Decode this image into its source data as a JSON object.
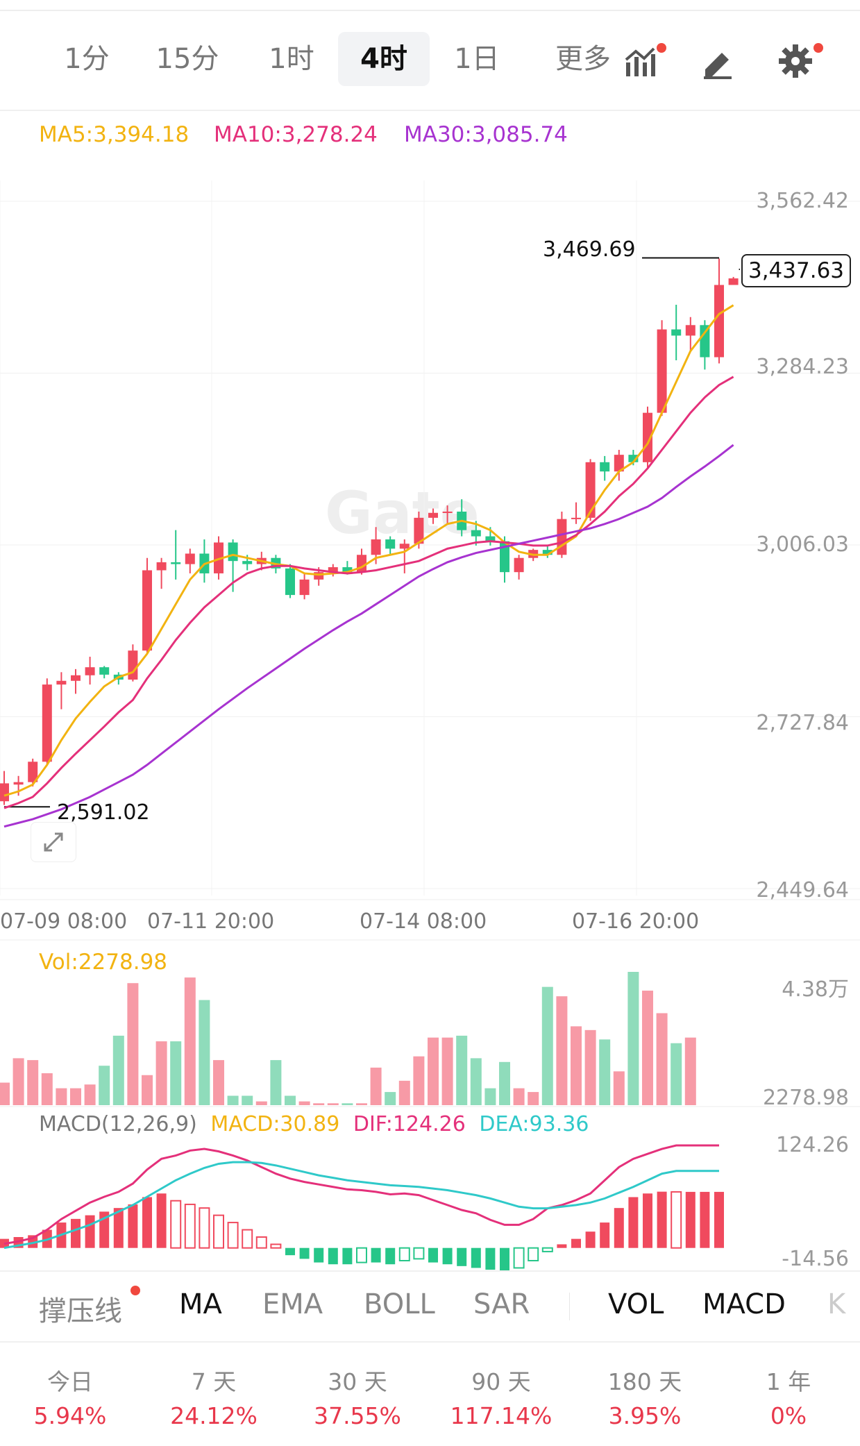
{
  "toolbar": {
    "timeframes": [
      "1分",
      "15分",
      "1时",
      "4时",
      "1日",
      "更多"
    ],
    "active": "4时"
  },
  "ma_legend": {
    "ma5": "MA5:3,394.18",
    "ma10": "MA10:3,278.24",
    "ma30": "MA30:3,085.74"
  },
  "colors": {
    "up": "#f04a5e",
    "down": "#26c689",
    "ma5": "#f2b311",
    "ma10": "#e4307a",
    "ma30": "#a733d0",
    "dif": "#e4307a",
    "dea": "#2fc9c9"
  },
  "watermark": "Gate",
  "price_axis": [
    "3,562.42",
    "3,284.23",
    "3,006.03",
    "2,727.84",
    "2,449.64"
  ],
  "time_axis": [
    "07-09 08:00",
    "07-11 20:00",
    "07-14 08:00",
    "07-16 20:00"
  ],
  "annotations": {
    "high": "3,469.69",
    "low": "2,591.02",
    "last_price": "3,437.63"
  },
  "volume": {
    "label": "Vol:2278.98",
    "axis_top": "4.38万",
    "axis_bottom": "2278.98"
  },
  "macd": {
    "title": "MACD(12,26,9)",
    "macd": "MACD:30.89",
    "dif": "DIF:124.26",
    "dea": "DEA:93.36",
    "axis_top": "124.26",
    "axis_bottom": "-14.56"
  },
  "indicators": [
    "撑压线",
    "MA",
    "EMA",
    "BOLL",
    "SAR",
    "VOL",
    "MACD",
    "K"
  ],
  "performance": [
    {
      "label": "今日",
      "value": "5.94%"
    },
    {
      "label": "7 天",
      "value": "24.12%"
    },
    {
      "label": "30 天",
      "value": "37.55%"
    },
    {
      "label": "90 天",
      "value": "117.14%"
    },
    {
      "label": "180 天",
      "value": "3.95%"
    },
    {
      "label": "1 年",
      "value": "0%"
    }
  ],
  "chart_data": {
    "type": "candlestick",
    "interval": "4时",
    "ylim": [
      2449.64,
      3562.42
    ],
    "y_ticks": [
      3562.42,
      3284.23,
      3006.03,
      2727.84,
      2449.64
    ],
    "x_ticks": [
      "07-09 08:00",
      "07-11 20:00",
      "07-14 08:00",
      "07-16 20:00"
    ],
    "candles": [
      {
        "o": 2591,
        "h": 2640,
        "l": 2585,
        "c": 2620
      },
      {
        "o": 2618,
        "h": 2632,
        "l": 2600,
        "c": 2622
      },
      {
        "o": 2622,
        "h": 2660,
        "l": 2615,
        "c": 2655
      },
      {
        "o": 2655,
        "h": 2790,
        "l": 2650,
        "c": 2780
      },
      {
        "o": 2780,
        "h": 2800,
        "l": 2740,
        "c": 2786
      },
      {
        "o": 2786,
        "h": 2805,
        "l": 2765,
        "c": 2795
      },
      {
        "o": 2795,
        "h": 2825,
        "l": 2780,
        "c": 2808
      },
      {
        "o": 2808,
        "h": 2810,
        "l": 2790,
        "c": 2796
      },
      {
        "o": 2796,
        "h": 2800,
        "l": 2780,
        "c": 2788
      },
      {
        "o": 2788,
        "h": 2845,
        "l": 2785,
        "c": 2835
      },
      {
        "o": 2835,
        "h": 2985,
        "l": 2830,
        "c": 2965
      },
      {
        "o": 2965,
        "h": 2985,
        "l": 2935,
        "c": 2978
      },
      {
        "o": 2978,
        "h": 3030,
        "l": 2950,
        "c": 2975
      },
      {
        "o": 2975,
        "h": 3000,
        "l": 2960,
        "c": 2992
      },
      {
        "o": 2992,
        "h": 3015,
        "l": 2945,
        "c": 2960
      },
      {
        "o": 2960,
        "h": 3020,
        "l": 2950,
        "c": 3010
      },
      {
        "o": 3010,
        "h": 3015,
        "l": 2930,
        "c": 2980
      },
      {
        "o": 2980,
        "h": 2990,
        "l": 2965,
        "c": 2975
      },
      {
        "o": 2975,
        "h": 2995,
        "l": 2965,
        "c": 2985
      },
      {
        "o": 2985,
        "h": 2990,
        "l": 2960,
        "c": 2968
      },
      {
        "o": 2968,
        "h": 2975,
        "l": 2920,
        "c": 2925
      },
      {
        "o": 2925,
        "h": 2960,
        "l": 2918,
        "c": 2950
      },
      {
        "o": 2950,
        "h": 2970,
        "l": 2940,
        "c": 2962
      },
      {
        "o": 2962,
        "h": 2975,
        "l": 2955,
        "c": 2970
      },
      {
        "o": 2970,
        "h": 2980,
        "l": 2958,
        "c": 2962
      },
      {
        "o": 2962,
        "h": 3000,
        "l": 2958,
        "c": 2990
      },
      {
        "o": 2990,
        "h": 3035,
        "l": 2975,
        "c": 3015
      },
      {
        "o": 3015,
        "h": 3020,
        "l": 2990,
        "c": 3000
      },
      {
        "o": 3000,
        "h": 3015,
        "l": 2960,
        "c": 3008
      },
      {
        "o": 3008,
        "h": 3060,
        "l": 3000,
        "c": 3050
      },
      {
        "o": 3050,
        "h": 3065,
        "l": 3040,
        "c": 3058
      },
      {
        "o": 3058,
        "h": 3070,
        "l": 3040,
        "c": 3060
      },
      {
        "o": 3060,
        "h": 3080,
        "l": 3020,
        "c": 3030
      },
      {
        "o": 3030,
        "h": 3045,
        "l": 3005,
        "c": 3020
      },
      {
        "o": 3020,
        "h": 3035,
        "l": 3005,
        "c": 3012
      },
      {
        "o": 3012,
        "h": 3020,
        "l": 2945,
        "c": 2962
      },
      {
        "o": 2962,
        "h": 2990,
        "l": 2950,
        "c": 2985
      },
      {
        "o": 2985,
        "h": 3000,
        "l": 2980,
        "c": 2998
      },
      {
        "o": 2998,
        "h": 3005,
        "l": 2985,
        "c": 2990
      },
      {
        "o": 2990,
        "h": 3060,
        "l": 2985,
        "c": 3048
      },
      {
        "o": 3048,
        "h": 3075,
        "l": 3040,
        "c": 3050
      },
      {
        "o": 3050,
        "h": 3145,
        "l": 3045,
        "c": 3140
      },
      {
        "o": 3140,
        "h": 3150,
        "l": 3110,
        "c": 3125
      },
      {
        "o": 3125,
        "h": 3160,
        "l": 3110,
        "c": 3152
      },
      {
        "o": 3152,
        "h": 3160,
        "l": 3135,
        "c": 3140
      },
      {
        "o": 3140,
        "h": 3230,
        "l": 3130,
        "c": 3220
      },
      {
        "o": 3220,
        "h": 3370,
        "l": 3215,
        "c": 3355
      },
      {
        "o": 3355,
        "h": 3395,
        "l": 3305,
        "c": 3345
      },
      {
        "o": 3345,
        "h": 3375,
        "l": 3320,
        "c": 3362
      },
      {
        "o": 3362,
        "h": 3370,
        "l": 3290,
        "c": 3310
      },
      {
        "o": 3310,
        "h": 3469.69,
        "l": 3300,
        "c": 3427
      },
      {
        "o": 3427,
        "h": 3440,
        "l": 3428,
        "c": 3437.63
      }
    ],
    "ma5": [
      2600,
      2607,
      2618,
      2650,
      2690,
      2725,
      2752,
      2777,
      2792,
      2800,
      2830,
      2870,
      2910,
      2950,
      2975,
      2983,
      2990,
      2985,
      2980,
      2975,
      2972,
      2960,
      2958,
      2960,
      2962,
      2970,
      2985,
      2990,
      2995,
      3010,
      3025,
      3040,
      3045,
      3040,
      3030,
      3010,
      2995,
      2990,
      2990,
      3005,
      3020,
      3060,
      3095,
      3125,
      3140,
      3170,
      3220,
      3270,
      3320,
      3350,
      3380,
      3394.18
    ],
    "ma10": [
      2580,
      2588,
      2598,
      2620,
      2645,
      2668,
      2690,
      2712,
      2735,
      2755,
      2790,
      2820,
      2852,
      2880,
      2905,
      2925,
      2945,
      2960,
      2968,
      2972,
      2972,
      2968,
      2965,
      2962,
      2960,
      2962,
      2965,
      2970,
      2975,
      2980,
      2990,
      3000,
      3005,
      3010,
      3012,
      3010,
      3008,
      3005,
      3005,
      3010,
      3022,
      3040,
      3060,
      3085,
      3105,
      3130,
      3160,
      3190,
      3220,
      3245,
      3265,
      3278.24
    ],
    "ma30": [
      2550,
      2556,
      2562,
      2570,
      2578,
      2588,
      2598,
      2610,
      2622,
      2634,
      2650,
      2668,
      2686,
      2704,
      2722,
      2740,
      2757,
      2774,
      2790,
      2806,
      2822,
      2838,
      2853,
      2868,
      2882,
      2895,
      2910,
      2925,
      2940,
      2955,
      2967,
      2978,
      2986,
      2993,
      2998,
      3003,
      3008,
      3013,
      3018,
      3023,
      3028,
      3033,
      3040,
      3048,
      3058,
      3068,
      3082,
      3100,
      3117,
      3133,
      3150,
      3168
    ],
    "volume": [
      0.12,
      0.25,
      0.24,
      0.17,
      0.09,
      0.09,
      0.11,
      0.21,
      0.37,
      0.65,
      0.16,
      0.34,
      0.34,
      0.68,
      0.56,
      0.24,
      0.05,
      0.05,
      0.02,
      0.24,
      0.05,
      0.02,
      0.01,
      0.01,
      0.01,
      0.01,
      0.2,
      0.07,
      0.13,
      0.26,
      0.36,
      0.36,
      0.37,
      0.25,
      0.09,
      0.23,
      0.09,
      0.07,
      0.63,
      0.58,
      0.42,
      0.4,
      0.35,
      0.18,
      0.71,
      0.61,
      0.49,
      0.33,
      0.36,
      0.0,
      0.0,
      0.0
    ],
    "dif": [
      5,
      8,
      12,
      22,
      35,
      45,
      55,
      62,
      68,
      78,
      95,
      108,
      112,
      118,
      120,
      117,
      112,
      106,
      98,
      90,
      84,
      80,
      77,
      74,
      71,
      70,
      68,
      65,
      66,
      64,
      58,
      52,
      46,
      42,
      34,
      28,
      28,
      35,
      48,
      52,
      58,
      66,
      82,
      98,
      108,
      114,
      120,
      124.26,
      124.26,
      124.26,
      124.26,
      124.26
    ],
    "dea": [
      0,
      3,
      6,
      10,
      16,
      22,
      28,
      36,
      44,
      52,
      62,
      72,
      82,
      90,
      97,
      102,
      104,
      104,
      103,
      100,
      96,
      92,
      88,
      85,
      82,
      80,
      78,
      76,
      75,
      74,
      72,
      70,
      67,
      64,
      60,
      55,
      50,
      48,
      48,
      50,
      52,
      55,
      60,
      67,
      74,
      82,
      90,
      93.36,
      93.36,
      93.36,
      93.36,
      93.36
    ],
    "macd_hist": [
      5,
      6,
      7,
      10,
      14,
      16,
      18,
      20,
      22,
      24,
      28,
      30,
      26,
      24,
      22,
      18,
      14,
      10,
      6,
      2,
      -4,
      -6,
      -8,
      -9,
      -9,
      -8,
      -8,
      -9,
      -7,
      -6,
      -8,
      -9,
      -10,
      -11,
      -12,
      -13,
      -11,
      -7,
      -2,
      2,
      5,
      9,
      14,
      22,
      28,
      30,
      31,
      30.89,
      30.89,
      30.89,
      30.89,
      30.89
    ]
  }
}
